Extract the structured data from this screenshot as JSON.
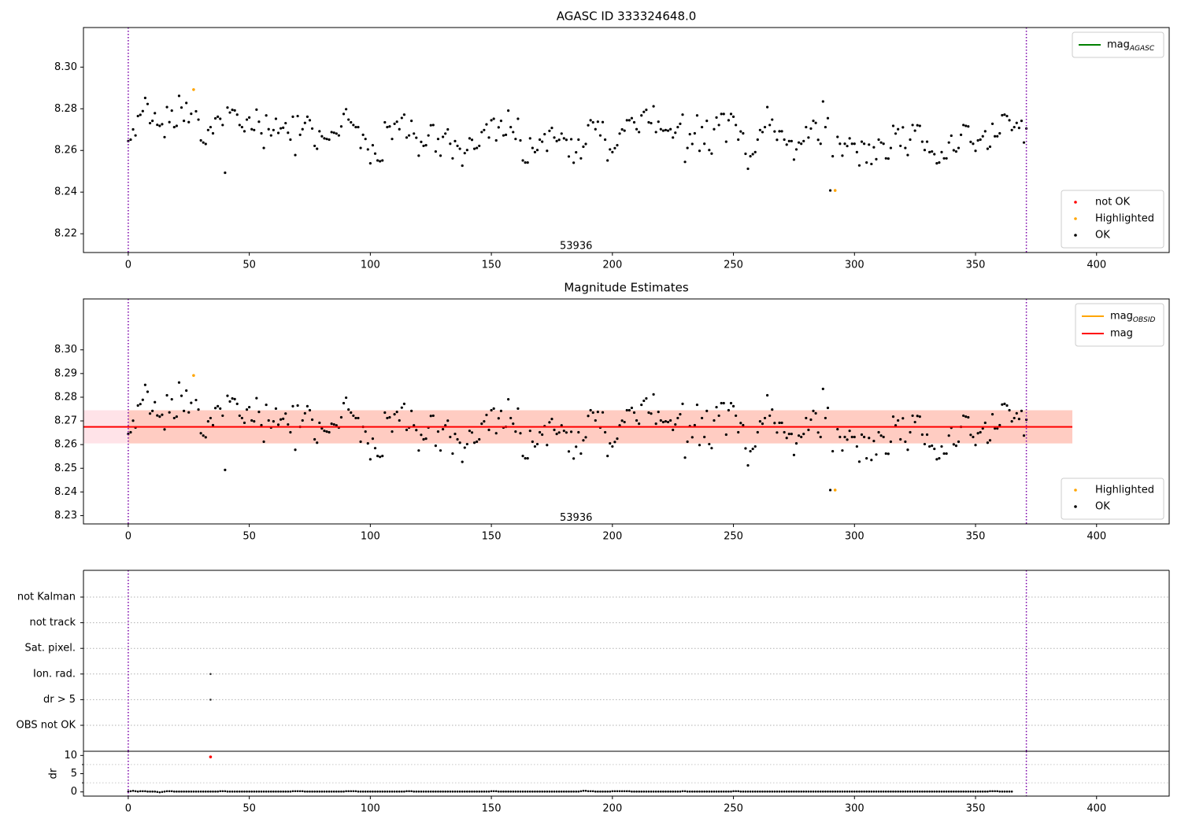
{
  "chart_data": [
    {
      "type": "scatter",
      "title": "AGASC ID 333324648.0",
      "xlim": [
        -18.5,
        430
      ],
      "ylim": [
        8.211,
        8.319
      ],
      "xticks": [
        0,
        50,
        100,
        150,
        200,
        250,
        300,
        350,
        400
      ],
      "yticks": [
        8.22,
        8.24,
        8.26,
        8.28,
        8.3
      ],
      "vlines": [
        0,
        371
      ],
      "annotation": {
        "text": "53936",
        "x": 185,
        "y": 8.214
      },
      "legend_upper": [
        {
          "label": "mag",
          "sub": "AGASC",
          "color": "#008000"
        }
      ],
      "legend_lower": [
        {
          "label": "not OK",
          "color": "#ff0000"
        },
        {
          "label": "Highlighted",
          "color": "#ffa500"
        },
        {
          "label": "OK",
          "color": "#000000"
        }
      ],
      "highlighted": [
        [
          27,
          8.2892
        ],
        [
          292,
          8.2408
        ]
      ],
      "ok_series_note": "OK points: x = 0..371, y values listed in shared_y"
    },
    {
      "type": "scatter",
      "title": "Magnitude Estimates",
      "xlim": [
        -18.5,
        430
      ],
      "ylim": [
        8.2265,
        8.3215
      ],
      "xticks": [
        0,
        50,
        100,
        150,
        200,
        250,
        300,
        350,
        400
      ],
      "yticks": [
        8.23,
        8.24,
        8.25,
        8.26,
        8.27,
        8.28,
        8.29,
        8.3
      ],
      "vlines": [
        0,
        371
      ],
      "mag": 8.2675,
      "mag_band": [
        8.2605,
        8.2745
      ],
      "band_x": [
        -18.5,
        390
      ],
      "annotation": {
        "text": "53936",
        "x": 185,
        "y": 8.229
      },
      "legend_upper": [
        {
          "label": "mag",
          "sub": "OBSID",
          "color": "#ffa500"
        },
        {
          "label": "mag",
          "sub": "",
          "color": "#ff0000"
        }
      ],
      "legend_lower": [
        {
          "label": "Highlighted",
          "color": "#ffa500"
        },
        {
          "label": "OK",
          "color": "#000000"
        }
      ],
      "highlighted": [
        [
          27,
          8.2892
        ],
        [
          292,
          8.2408
        ]
      ]
    },
    {
      "type": "scatter",
      "xlim": [
        -18.5,
        430
      ],
      "flag_labels": [
        "not Kalman",
        "not track",
        "Sat. pixel.",
        "Ion. rad.",
        "dr > 5",
        "OBS not OK"
      ],
      "flag_points": [
        {
          "flag": "Ion. rad.",
          "x": 34
        },
        {
          "flag": "dr > 5",
          "x": 34
        }
      ],
      "vlines": [
        0,
        371
      ]
    },
    {
      "type": "scatter",
      "ylabel": "dr",
      "xlim": [
        -18.5,
        430
      ],
      "ylim": [
        -0.5,
        10.5
      ],
      "yticks": [
        0,
        5,
        10
      ],
      "xticks": [
        0,
        50,
        100,
        150,
        200,
        250,
        300,
        350,
        400
      ],
      "outlier": [
        34,
        9.6
      ],
      "vlines": [
        0,
        371
      ]
    }
  ],
  "shared_y": [
    8.2645,
    8.2652,
    8.2701,
    8.2672,
    8.2765,
    8.2771,
    8.2789,
    8.2852,
    8.2823,
    8.2731,
    8.2742,
    8.2779,
    8.2723,
    8.2718,
    8.2726,
    8.2664,
    8.2808,
    8.2736,
    8.2791,
    8.2712,
    8.2718,
    8.2862,
    8.2806,
    8.2742,
    8.2828,
    8.2736,
    8.2776,
    8.2892,
    8.2788,
    8.2748,
    8.2648,
    8.2638,
    8.2631,
    8.2698,
    8.2712,
    8.2682,
    8.2754,
    8.2762,
    8.2752,
    8.2722,
    8.2493,
    8.2806,
    8.2782,
    8.2795,
    8.2792,
    8.2772,
    8.2722,
    8.2712,
    8.2692,
    8.2748,
    8.2758,
    8.2702,
    8.2698,
    8.2796,
    8.2738,
    8.2682,
    8.2612,
    8.2768,
    8.2702,
    8.2672,
    8.2698,
    8.2752,
    8.2684,
    8.2706,
    8.2709,
    8.2731,
    8.2685,
    8.2652,
    8.2762,
    8.2578,
    8.2765,
    8.2675,
    8.2702,
    8.2732,
    8.2762,
    8.2745,
    8.2705,
    8.2622,
    8.2608,
    8.2692,
    8.2668,
    8.2658,
    8.2655,
    8.2652,
    8.2688,
    8.2685,
    8.2681,
    8.2672,
    8.2715,
    8.2775,
    8.2798,
    8.2748,
    8.2735,
    8.2722,
    8.2712,
    8.2712,
    8.2612,
    8.2675,
    8.2655,
    8.2605,
    8.2538,
    8.2625,
    8.2585,
    8.2552,
    8.2548,
    8.2552,
    8.2735,
    8.2712,
    8.2715,
    8.2655,
    8.2728,
    8.2738,
    8.2702,
    8.2756,
    8.2772,
    8.2662,
    8.2672,
    8.2742,
    8.2681,
    8.2661,
    8.2575,
    8.2641,
    8.2622,
    8.2625,
    8.2672,
    8.2721,
    8.2722,
    8.2595,
    8.2655,
    8.2575,
    8.2665,
    8.2681,
    8.2701,
    8.2632,
    8.2562,
    8.2645,
    8.2622,
    8.2608,
    8.2527,
    8.2587,
    8.2602,
    8.2658,
    8.2651,
    8.2608,
    8.2612,
    8.2622,
    8.2688,
    8.2698,
    8.2725,
    8.2662,
    8.2745,
    8.2752,
    8.2648,
    8.2711,
    8.2742,
    8.2672,
    8.2675,
    8.2791,
    8.2712,
    8.2688,
    8.2655,
    8.2752,
    8.2648,
    8.2552,
    8.2542,
    8.2542,
    8.2658,
    8.2612,
    8.2592,
    8.2602,
    8.2652,
    8.2642,
    8.2678,
    8.2598,
    8.2694,
    8.2708,
    8.2662,
    8.2645,
    8.2651,
    8.2681,
    8.2658,
    8.2651,
    8.2571,
    8.2654,
    8.2541,
    8.2591,
    8.2652,
    8.2562,
    8.2618,
    8.2631,
    8.2721,
    8.2745,
    8.2735,
    8.2702,
    8.2738,
    8.2672,
    8.2736,
    8.2652,
    8.2552,
    8.2605,
    8.2592,
    8.2611,
    8.2625,
    8.2681,
    8.2701,
    8.2695,
    8.2745,
    8.2745,
    8.2755,
    8.2735,
    8.2702,
    8.2688,
    8.2768,
    8.2785,
    8.2795,
    8.2735,
    8.2731,
    8.2812,
    8.2688,
    8.2738,
    8.2702,
    8.2695,
    8.2698,
    8.2695,
    8.2702,
    8.2662,
    8.2685,
    8.2712,
    8.2728,
    8.2772,
    8.2545,
    8.2612,
    8.2678,
    8.2631,
    8.2682,
    8.2768,
    8.2598,
    8.2712,
    8.2632,
    8.2742,
    8.2602,
    8.2585,
    8.2702,
    8.2758,
    8.2722,
    8.2775,
    8.2775,
    8.2642,
    8.2745,
    8.2775,
    8.2762,
    8.2722,
    8.2652,
    8.2691,
    8.2682,
    8.2584,
    8.2512,
    8.2572,
    8.2582,
    8.2592,
    8.2652,
    8.2698,
    8.2688,
    8.2712,
    8.2808,
    8.2722,
    8.2748,
    8.2691,
    8.2651,
    8.2692,
    8.2692,
    8.2652,
    8.2628,
    8.2645,
    8.2645,
    8.2556,
    8.2605,
    8.2638,
    8.2632,
    8.2645,
    8.2712,
    8.2662,
    8.2705,
    8.2742,
    8.2732,
    8.2651,
    8.2632,
    8.2835,
    8.2712,
    8.2755,
    8.2408,
    8.2572,
    8.2652,
    8.2665,
    8.2632,
    8.2575,
    8.2632,
    8.2621,
    8.2658,
    8.2632,
    8.2632,
    8.2592,
    8.2528,
    8.2642,
    8.2632,
    8.2542,
    8.2628,
    8.2535,
    8.2615,
    8.2558,
    8.2652,
    8.2638,
    8.2632,
    8.2562,
    8.2561,
    8.2612,
    8.2718,
    8.2681,
    8.2702,
    8.2622,
    8.2711,
    8.2612,
    8.2578,
    8.2652,
    8.2722,
    8.2695,
    8.2721,
    8.2718,
    8.2642,
    8.2602,
    8.2642,
    8.2592,
    8.2595,
    8.2582,
    8.2538,
    8.2542,
    8.2592,
    8.2562,
    8.2562,
    8.2638,
    8.2671,
    8.2601,
    8.2595,
    8.2612,
    8.2675,
    8.2722,
    8.2718,
    8.2715,
    8.2641,
    8.2632,
    8.2598,
    8.2648,
    8.2652,
    8.2668,
    8.2692,
    8.2608,
    8.2618,
    8.2728,
    8.2668,
    8.2668,
    8.2682,
    8.2769,
    8.2772,
    8.2765,
    8.2745,
    8.2698,
    8.2712,
    8.2732,
    8.2708,
    8.2742,
    8.2638,
    8.2705
  ],
  "shared_dr": [
    0.1,
    0.2,
    0.3,
    0.2,
    0.1,
    0.2,
    0.2,
    0.2,
    0.1,
    0.1,
    0.1,
    0.1,
    0.0,
    -0.1,
    0.0,
    0.1,
    0.2,
    0.2,
    0.2,
    0.1,
    0.1,
    0.1,
    0.1,
    0.1,
    0.1,
    0.1,
    0.1,
    0.1,
    0.1,
    0.1,
    0.1,
    0.1,
    0.1,
    0.1,
    0.1,
    0.1,
    0.1,
    0.1,
    0.2,
    0.2,
    0.2,
    0.1,
    0.1,
    0.1,
    0.1,
    0.1,
    0.1,
    0.1,
    0.1,
    0.1,
    0.1,
    0.1,
    0.1,
    0.1,
    0.1,
    0.1,
    0.1,
    0.1,
    0.1,
    0.1,
    0.1,
    0.1,
    0.1,
    0.1,
    0.1,
    0.1,
    0.1,
    0.1,
    0.2,
    0.2,
    0.2,
    0.2,
    0.2,
    0.1,
    0.1,
    0.1,
    0.1,
    0.1,
    0.1,
    0.1,
    0.1,
    0.1,
    0.1,
    0.1,
    0.1,
    0.1,
    0.1,
    0.1,
    0.1,
    0.1,
    0.2,
    0.2,
    0.2,
    0.2,
    0.2,
    0.1,
    0.1,
    0.1,
    0.1,
    0.1,
    0.1,
    0.1,
    0.1,
    0.1,
    0.1,
    0.1,
    0.1,
    0.1,
    0.1,
    0.1,
    0.1,
    0.1,
    0.1,
    0.1,
    0.1,
    0.2,
    0.2,
    0.2,
    0.1,
    0.1,
    0.1,
    0.1,
    0.1,
    0.1,
    0.1,
    0.1,
    0.1,
    0.1,
    0.1,
    0.1,
    0.1,
    0.1,
    0.1,
    0.1,
    0.1,
    0.1,
    0.1,
    0.1,
    0.1,
    0.1,
    0.1,
    0.1,
    0.1,
    0.1,
    0.1,
    0.1,
    0.1,
    0.1,
    0.1,
    0.1,
    0.2,
    0.2,
    0.2,
    0.1,
    0.1,
    0.1,
    0.1,
    0.1,
    0.1,
    0.1,
    0.1,
    0.1,
    0.1,
    0.1,
    0.1,
    0.1,
    0.1,
    0.1,
    0.1,
    0.1,
    0.1,
    0.1,
    0.1,
    0.1,
    0.1,
    0.1,
    0.1,
    0.1,
    0.1,
    0.1,
    0.1,
    0.1,
    0.1,
    0.1,
    0.1,
    0.1,
    0.1,
    0.2,
    0.3,
    0.3,
    0.2,
    0.2,
    0.2,
    0.1,
    0.1,
    0.1,
    0.1,
    0.1,
    0.1,
    0.1,
    0.2,
    0.2,
    0.2,
    0.2,
    0.2,
    0.2,
    0.2,
    0.2,
    0.1,
    0.1,
    0.1,
    0.1,
    0.1,
    0.1,
    0.1,
    0.1,
    0.1,
    0.1,
    0.1,
    0.1,
    0.1,
    0.1,
    0.1,
    0.1,
    0.1,
    0.1,
    0.1,
    0.1,
    0.1,
    0.2,
    0.2,
    0.1,
    0.1,
    0.1,
    0.1,
    0.1,
    0.1,
    0.1,
    0.1,
    0.1,
    0.1,
    0.1,
    0.1,
    0.1,
    0.1,
    0.1,
    0.1,
    0.1,
    0.1,
    0.1,
    0.2,
    0.2,
    0.2,
    0.1,
    0.1,
    0.1,
    0.1,
    0.1,
    0.1,
    0.1,
    0.1,
    0.1,
    0.1,
    0.1,
    0.1,
    0.1,
    0.1,
    0.1,
    0.1,
    0.1,
    0.1,
    0.1,
    0.1,
    0.1,
    0.1,
    0.1,
    0.1,
    0.1,
    0.1,
    0.1,
    0.1,
    0.1,
    0.1,
    0.1,
    0.1,
    0.1,
    0.1,
    0.1,
    0.1,
    0.1,
    0.1,
    0.1,
    0.1,
    0.1,
    0.1,
    0.1,
    0.1,
    0.1,
    0.1,
    0.1,
    0.1,
    0.1,
    0.1,
    0.1,
    0.1,
    0.1,
    0.1,
    0.1,
    0.1,
    0.1,
    0.1,
    0.1,
    0.1,
    0.1,
    0.1,
    0.1,
    0.1,
    0.1,
    0.1,
    0.1,
    0.1,
    0.1,
    0.1,
    0.1,
    0.1,
    0.1,
    0.1,
    0.1,
    0.1,
    0.1,
    0.1,
    0.1,
    0.1,
    0.1,
    0.1,
    0.1,
    0.1,
    0.1,
    0.1,
    0.1,
    0.1,
    0.1,
    0.1,
    0.1,
    0.1,
    0.1,
    0.1,
    0.1,
    0.1,
    0.1,
    0.1,
    0.1,
    0.1,
    0.1,
    0.1,
    0.1,
    0.2,
    0.2,
    0.2,
    0.2,
    0.1,
    0.1,
    0.1,
    0.1,
    0.1,
    0.1
  ]
}
